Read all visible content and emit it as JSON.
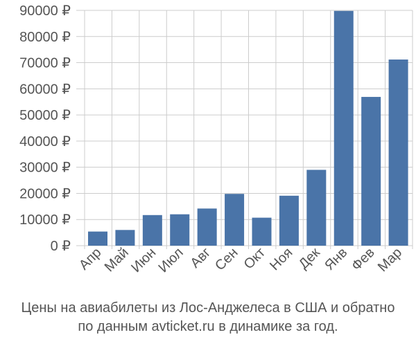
{
  "caption": {
    "line1": "Цены на авиабилеты из Лос-Анджелеса в США и обратно",
    "line2": "по данным avticket.ru в динамике за год."
  },
  "colors": {
    "bar": "#4a74a8",
    "grid": "#cccccc",
    "axis_text": "#555555"
  },
  "chart_data": {
    "type": "bar",
    "categories": [
      "Апр",
      "Май",
      "Июн",
      "Июл",
      "Авг",
      "Сен",
      "Окт",
      "Ноя",
      "Дек",
      "Янв",
      "Фев",
      "Мар"
    ],
    "values": [
      5400,
      6000,
      11700,
      12000,
      14200,
      19800,
      10700,
      19100,
      29000,
      89800,
      56900,
      71200
    ],
    "yticks": [
      "0 ₽",
      "10000 ₽",
      "20000 ₽",
      "30000 ₽",
      "40000 ₽",
      "50000 ₽",
      "60000 ₽",
      "70000 ₽",
      "80000 ₽",
      "90000 ₽"
    ],
    "ytick_values": [
      0,
      10000,
      20000,
      30000,
      40000,
      50000,
      60000,
      70000,
      80000,
      90000
    ],
    "ylim": [
      0,
      90000
    ],
    "grid": true,
    "legend": "none",
    "title": "",
    "xlabel": "",
    "ylabel": ""
  }
}
